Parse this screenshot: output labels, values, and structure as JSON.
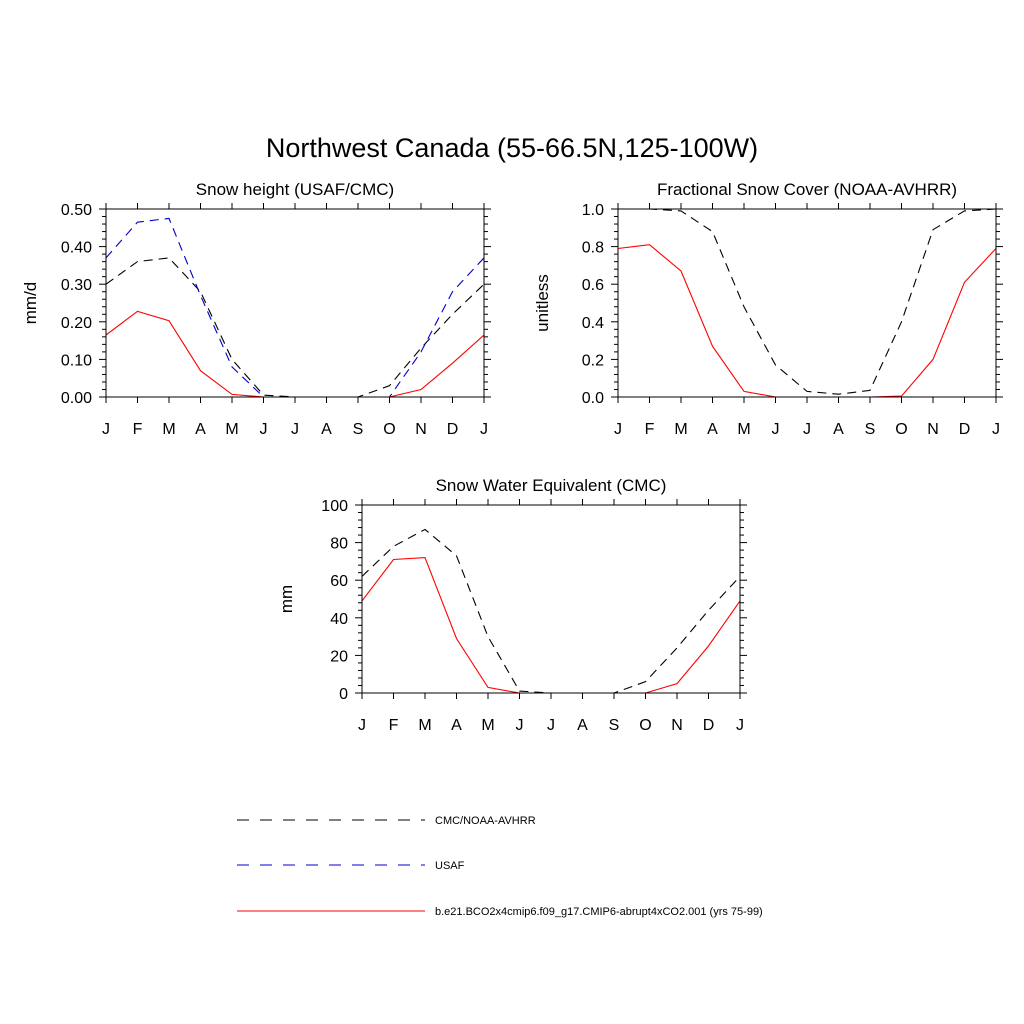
{
  "main_title": "Northwest Canada (55-66.5N,125-100W)",
  "legend": [
    {
      "label": "CMC/NOAA-AVHRR",
      "color": "#000000",
      "dash": true
    },
    {
      "label": "USAF",
      "color": "#0000cc",
      "dash": true
    },
    {
      "label": "b.e21.BCO2x4cmip6.f09_g17.CMIP6-abrupt4xCO2.001 (yrs 75-99)",
      "color": "#ff0000",
      "dash": false
    }
  ],
  "chart_data": [
    {
      "type": "line",
      "title": "Snow height (USAF/CMC)",
      "ylabel": "mm/d",
      "xlabel": "",
      "categories": [
        "J",
        "F",
        "M",
        "A",
        "M",
        "J",
        "J",
        "A",
        "S",
        "O",
        "N",
        "D",
        "J"
      ],
      "ylim": [
        0,
        0.5
      ],
      "yticks": [
        0,
        0.1,
        0.2,
        0.3,
        0.4,
        0.5
      ],
      "ytick_labels": [
        "0.00",
        "0.10",
        "0.20",
        "0.30",
        "0.40",
        "0.50"
      ],
      "series": [
        {
          "name": "CMC/NOAA-AVHRR",
          "color": "#000000",
          "dash": true,
          "values": [
            0.3,
            0.36,
            0.37,
            0.28,
            0.1,
            0.005,
            0.0,
            0.0,
            0.0,
            0.03,
            0.13,
            0.22,
            0.3
          ]
        },
        {
          "name": "USAF",
          "color": "#0000cc",
          "dash": true,
          "values": [
            0.37,
            0.465,
            0.475,
            0.27,
            0.08,
            0.0,
            0.0,
            0.0,
            0.0,
            0.0,
            0.12,
            0.28,
            0.37
          ]
        },
        {
          "name": "b.e21.BCO2x4cmip6.f09_g17.CMIP6-abrupt4xCO2.001 (yrs 75-99)",
          "color": "#ff0000",
          "dash": false,
          "values": [
            0.165,
            0.228,
            0.203,
            0.07,
            0.007,
            0.0,
            0.0,
            0.0,
            0.0,
            0.0,
            0.02,
            0.09,
            0.165
          ]
        }
      ]
    },
    {
      "type": "line",
      "title": "Fractional Snow Cover (NOAA-AVHRR)",
      "ylabel": "unitless",
      "xlabel": "",
      "categories": [
        "J",
        "F",
        "M",
        "A",
        "M",
        "J",
        "J",
        "A",
        "S",
        "O",
        "N",
        "D",
        "J"
      ],
      "ylim": [
        0,
        1.0
      ],
      "yticks": [
        0,
        0.2,
        0.4,
        0.6,
        0.8,
        1.0
      ],
      "ytick_labels": [
        "0.0",
        "0.2",
        "0.4",
        "0.6",
        "0.8",
        "1.0"
      ],
      "series": [
        {
          "name": "CMC/NOAA-AVHRR",
          "color": "#000000",
          "dash": true,
          "values": [
            1.0,
            1.0,
            0.99,
            0.88,
            0.48,
            0.17,
            0.03,
            0.015,
            0.035,
            0.4,
            0.89,
            0.99,
            1.0
          ]
        },
        {
          "name": "b.e21.BCO2x4cmip6.f09_g17.CMIP6-abrupt4xCO2.001 (yrs 75-99)",
          "color": "#ff0000",
          "dash": false,
          "values": [
            0.79,
            0.81,
            0.67,
            0.27,
            0.03,
            0.0,
            0.0,
            0.0,
            0.0,
            0.005,
            0.2,
            0.61,
            0.79
          ]
        }
      ]
    },
    {
      "type": "line",
      "title": "Snow Water Equivalent (CMC)",
      "ylabel": "mm",
      "xlabel": "",
      "categories": [
        "J",
        "F",
        "M",
        "A",
        "M",
        "J",
        "J",
        "A",
        "S",
        "O",
        "N",
        "D",
        "J"
      ],
      "ylim": [
        0,
        100
      ],
      "yticks": [
        0,
        20,
        40,
        60,
        80,
        100
      ],
      "ytick_labels": [
        "0",
        "20",
        "40",
        "60",
        "80",
        "100"
      ],
      "series": [
        {
          "name": "CMC/NOAA-AVHRR",
          "color": "#000000",
          "dash": true,
          "values": [
            62,
            78,
            87,
            73,
            30,
            1,
            0,
            0,
            0,
            6,
            24,
            44,
            62
          ]
        },
        {
          "name": "b.e21.BCO2x4cmip6.f09_g17.CMIP6-abrupt4xCO2.001 (yrs 75-99)",
          "color": "#ff0000",
          "dash": false,
          "values": [
            49,
            71,
            72,
            29,
            3,
            0,
            0,
            0,
            0,
            0,
            5,
            25,
            49
          ]
        }
      ]
    }
  ]
}
